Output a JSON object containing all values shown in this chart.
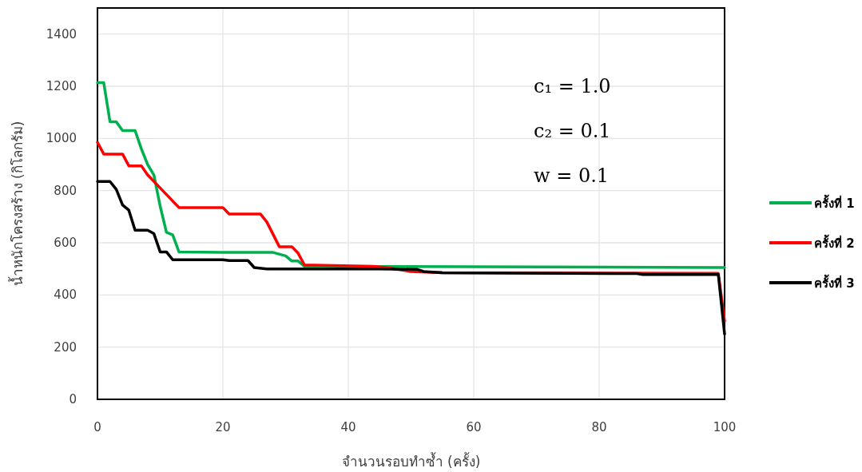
{
  "chart_data": {
    "type": "line",
    "xlabel": "จำนวนรอบทำซ้ำ (ครั้ง)",
    "ylabel": "น้ำหนักโครงสร้าง (กิโลกรัม)",
    "xlim": [
      0,
      100
    ],
    "xticks": [
      0,
      20,
      40,
      60,
      80,
      100
    ],
    "ylim": [
      0,
      1500
    ],
    "yticks": [
      0,
      200,
      400,
      600,
      800,
      1000,
      1200,
      1400
    ],
    "grid": true,
    "legend": "right",
    "marker": "none",
    "line_style": "solid",
    "annotations": [
      "c₁ = 1.0",
      "c₂ = 0.1",
      "w = 0.1"
    ],
    "series": [
      {
        "name": "ครั้งที่ 1",
        "color": "#00b050",
        "x": [
          0,
          1,
          2,
          3,
          4,
          6,
          7,
          8,
          9,
          10,
          11,
          12,
          13,
          20,
          28,
          30,
          31,
          32,
          33,
          100
        ],
        "values": [
          1214,
          1214,
          1064,
          1064,
          1030,
          1030,
          960,
          900,
          860,
          740,
          640,
          630,
          565,
          563,
          563,
          550,
          530,
          530,
          510,
          505
        ]
      },
      {
        "name": "ครั้งที่ 2",
        "color": "#ff0000",
        "x": [
          0,
          1,
          4,
          5,
          7,
          8,
          10,
          13,
          20,
          21,
          26,
          27,
          29,
          31,
          32,
          33,
          44,
          46,
          50,
          55,
          99,
          100
        ],
        "values": [
          985,
          940,
          940,
          895,
          895,
          860,
          810,
          735,
          735,
          710,
          710,
          680,
          585,
          585,
          560,
          515,
          510,
          505,
          490,
          485,
          483,
          300
        ]
      },
      {
        "name": "ครั้งที่ 3",
        "color": "#000000",
        "x": [
          0,
          2,
          3,
          4,
          5,
          6,
          8,
          9,
          10,
          11,
          12,
          20,
          21,
          24,
          25,
          27,
          45,
          51,
          52,
          55,
          86,
          87,
          99,
          100
        ],
        "values": [
          835,
          835,
          805,
          745,
          725,
          648,
          648,
          635,
          565,
          565,
          535,
          535,
          532,
          532,
          505,
          500,
          500,
          498,
          490,
          485,
          482,
          478,
          478,
          250
        ]
      }
    ]
  }
}
